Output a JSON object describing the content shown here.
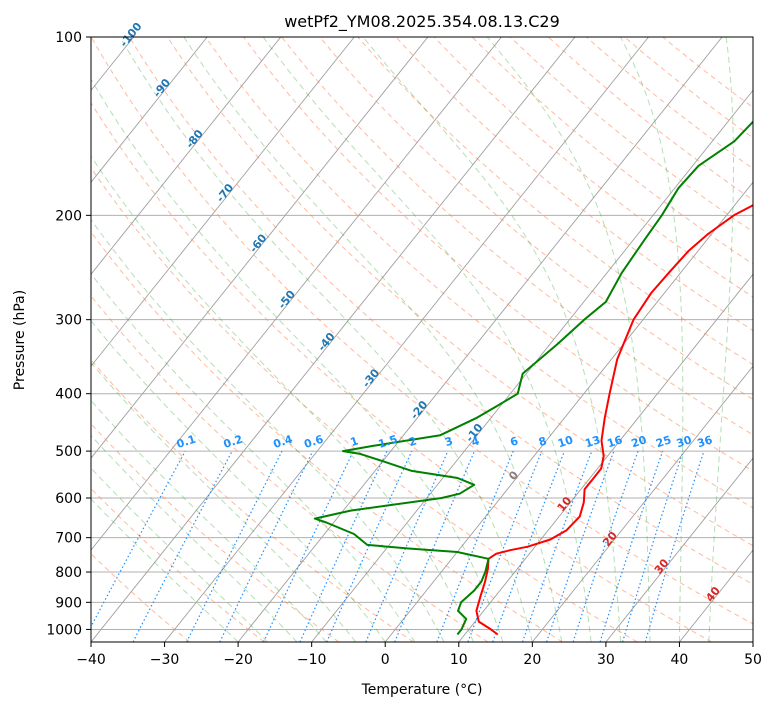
{
  "chart_data": {
    "type": "line",
    "title": "wetPf2_YM08.2025.354.08.13.C29",
    "xlabel": "Temperature (°C)",
    "ylabel": "Pressure (hPa)",
    "xlim": [
      -40,
      50
    ],
    "ylim": [
      1050,
      100
    ],
    "y_scale": "log",
    "grid": true,
    "x_ticks": [
      -40,
      -30,
      -20,
      -10,
      0,
      10,
      20,
      30,
      40,
      50
    ],
    "x_tick_labels": [
      "−40",
      "−30",
      "−20",
      "−10",
      "0",
      "10",
      "20",
      "30",
      "40",
      "50"
    ],
    "y_ticks": [
      100,
      200,
      300,
      400,
      500,
      600,
      700,
      800,
      900,
      1000
    ],
    "y_tick_labels": [
      "100",
      "200",
      "300",
      "400",
      "500",
      "600",
      "700",
      "800",
      "900",
      "1000"
    ],
    "series": [
      {
        "role": "temperature",
        "color": "#ff0000",
        "pressure": [
          1020,
          1000,
          970,
          930,
          880,
          830,
          790,
          760,
          745,
          735,
          725,
          705,
          680,
          645,
          610,
          580,
          555,
          535,
          510,
          480,
          440,
          400,
          350,
          300,
          270,
          250,
          230,
          215,
          200,
          185,
          170,
          155,
          140,
          125,
          115,
          107,
          100
        ],
        "temp": [
          14.5,
          13,
          10.5,
          9,
          8,
          7,
          6,
          5,
          5.5,
          7,
          9,
          11.3,
          12.5,
          12.8,
          11.8,
          10.5,
          10.5,
          10.5,
          9.5,
          7.5,
          5.5,
          3.5,
          0.8,
          -1.3,
          -1.8,
          -1.6,
          -1.3,
          -0.5,
          1,
          4,
          8,
          12,
          15.5,
          19,
          21.5,
          23,
          24.5
        ]
      },
      {
        "role": "dewpoint",
        "color": "#008000",
        "pressure": [
          1020,
          1000,
          960,
          930,
          900,
          860,
          830,
          800,
          780,
          760,
          740,
          730,
          720,
          690,
          660,
          650,
          630,
          600,
          590,
          570,
          555,
          540,
          520,
          505,
          500,
          490,
          470,
          440,
          420,
          400,
          370,
          330,
          300,
          280,
          250,
          220,
          200,
          180,
          165,
          150,
          137,
          127,
          120,
          112,
          106,
          100
        ],
        "temp": [
          9,
          9,
          8.5,
          6.5,
          6,
          6.5,
          6.5,
          6,
          5.5,
          5,
          0,
          -7,
          -13,
          -16,
          -21,
          -23,
          -19,
          -8,
          -6,
          -5,
          -8,
          -15,
          -20,
          -24,
          -26.5,
          -23,
          -15,
          -12,
          -10.5,
          -9,
          -10.5,
          -9,
          -8,
          -7,
          -8,
          -8.5,
          -8.8,
          -9.5,
          -9.2,
          -7,
          -6.5,
          -9,
          -7,
          -3,
          0,
          2
        ]
      }
    ],
    "isotherm_labels": [
      "-100",
      "-90",
      "-80",
      "-70",
      "-60",
      "-50",
      "-40",
      "-30",
      "-20",
      "-10",
      "0",
      "10",
      "20",
      "30",
      "40"
    ],
    "mixing_ratio_labels": [
      "0.1",
      "0.2",
      "0.4",
      "0.6",
      "1",
      "1.5",
      "2",
      "3",
      "4",
      "6",
      "8",
      "10",
      "13",
      "16",
      "20",
      "25",
      "30",
      "36"
    ],
    "mixing_ratio_values": [
      0.1,
      0.2,
      0.4,
      0.6,
      1,
      1.5,
      2,
      3,
      4,
      6,
      8,
      10,
      13,
      16,
      20,
      25,
      30,
      36
    ],
    "overlay_colors": {
      "isotherm": "#1f77b4",
      "isotherm_warm": "#d62728",
      "isotherm_zero": "#808080",
      "mixing_ratio": "#1e90ff",
      "dry_adiabat": "#ff7f50",
      "moist_adiabat": "#2ca02c",
      "grid": "#b0b0b0",
      "skew_lines": "#a0a0a0"
    }
  }
}
